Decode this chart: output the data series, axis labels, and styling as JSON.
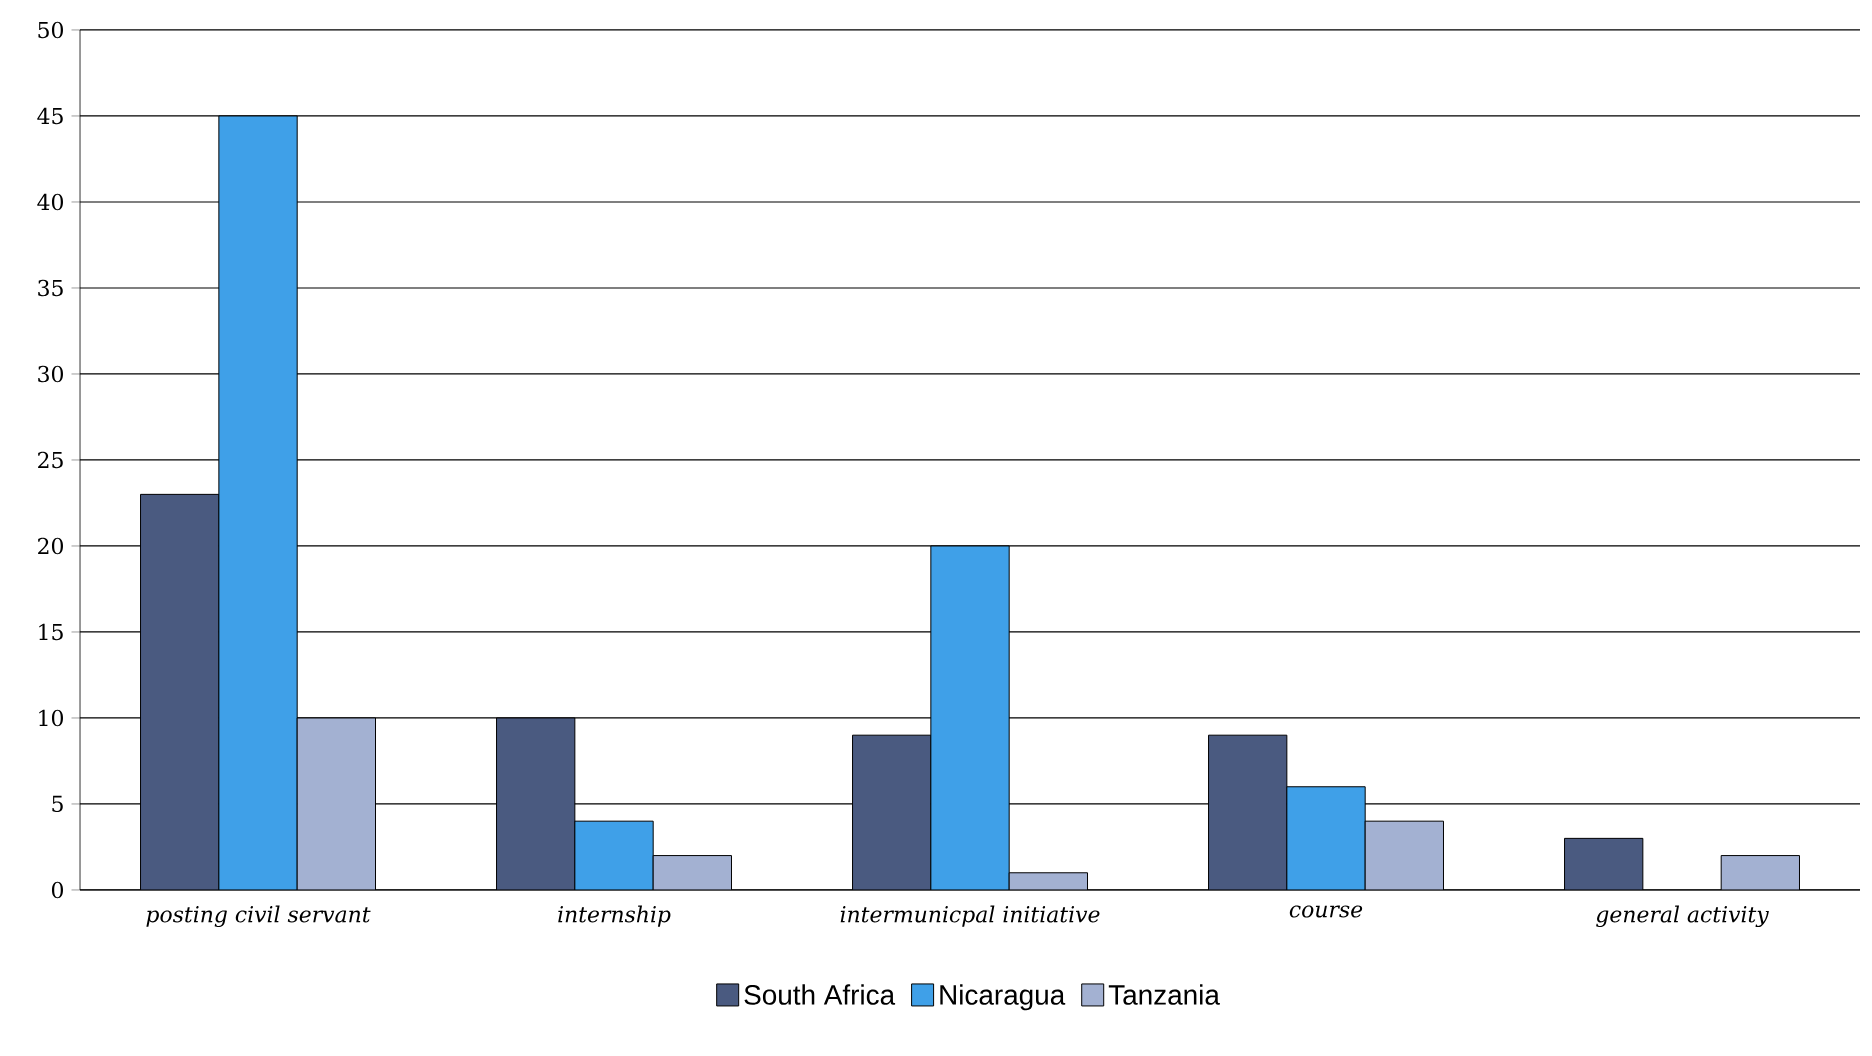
{
  "chart_data": {
    "type": "bar",
    "categories": [
      "posting civil servant",
      "internship",
      "intermunicpal initiative",
      "course",
      "general activity"
    ],
    "series": [
      {
        "name": "South Africa",
        "color": "#4a5a80",
        "values": [
          23,
          10,
          9,
          9,
          3
        ]
      },
      {
        "name": "Nicaragua",
        "color": "#3fa0e8",
        "values": [
          45,
          4,
          20,
          6,
          null
        ]
      },
      {
        "name": "Tanzania",
        "color": "#a3b1d2",
        "values": [
          10,
          2,
          1,
          4,
          2
        ]
      }
    ],
    "ylim": [
      0,
      50
    ],
    "yticks": [
      0,
      5,
      10,
      15,
      20,
      25,
      30,
      35,
      40,
      45,
      50
    ],
    "grid": "y",
    "legend": "bottom"
  }
}
